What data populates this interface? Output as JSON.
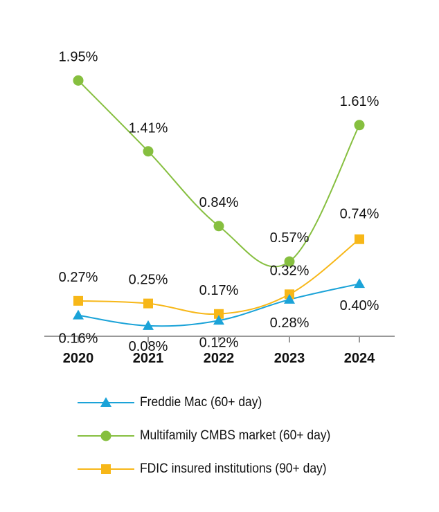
{
  "chart_data": {
    "type": "line",
    "categories": [
      "2020",
      "2021",
      "2022",
      "2023",
      "2024"
    ],
    "series": [
      {
        "name": "Freddie Mac (60+ day)",
        "values": [
          0.16,
          0.08,
          0.12,
          0.28,
          0.4
        ],
        "labels": [
          "0.16%",
          "0.08%",
          "0.12%",
          "0.28%",
          "0.40%"
        ],
        "color": "#1ba3d8",
        "marker": "triangle"
      },
      {
        "name": "Multifamily CMBS market (60+ day)",
        "values": [
          1.95,
          1.41,
          0.84,
          0.57,
          1.61
        ],
        "labels": [
          "1.95%",
          "1.41%",
          "0.84%",
          "0.57%",
          "1.61%"
        ],
        "color": "#86bf3f",
        "marker": "circle"
      },
      {
        "name": "FDIC insured institutions (90+ day)",
        "values": [
          0.27,
          0.25,
          0.17,
          0.32,
          0.74
        ],
        "labels": [
          "0.27%",
          "0.25%",
          "0.17%",
          "0.32%",
          "0.74%"
        ],
        "color": "#f7b718",
        "marker": "square"
      }
    ],
    "ylim": [
      0,
      2.3
    ],
    "grid": false,
    "legend_position": "bottom"
  }
}
